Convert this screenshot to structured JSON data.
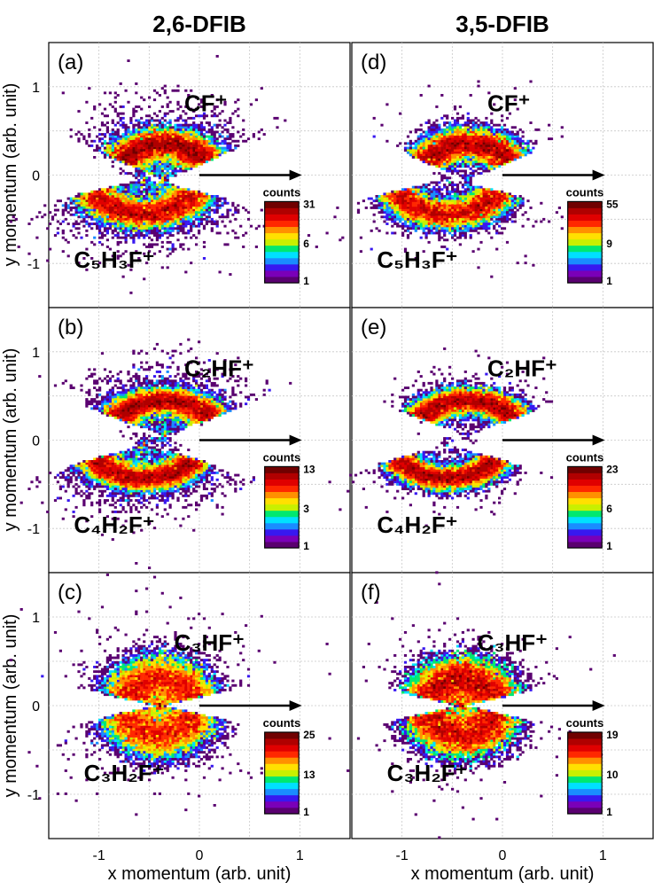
{
  "chart_data": {
    "type": "heatmap",
    "column_titles": [
      "2,6-DFIB",
      "3,5-DFIB"
    ],
    "xlabel": "x momentum (arb. unit)",
    "ylabel": "y momentum (arb. unit)",
    "xlim": [
      -1.5,
      1.5
    ],
    "ylim": [
      -1.5,
      1.5
    ],
    "xticks": [
      "-1",
      "0",
      "1"
    ],
    "yticks": [
      "1",
      "0",
      "-1"
    ],
    "colorbar_title": "counts",
    "colors": [
      "#5a0070",
      "#7a00b8",
      "#3818f0",
      "#1a8cff",
      "#00e0ff",
      "#00e870",
      "#c8f000",
      "#ffe000",
      "#ff9000",
      "#ff2800",
      "#e00000",
      "#b00000",
      "#700000"
    ],
    "panels": [
      {
        "label": "(a)",
        "upper_ion": "CF⁺",
        "lower_ion": "C₅H₃F⁺",
        "cb_ticks": [
          "31",
          "6",
          "1"
        ],
        "spread": 0.8
      },
      {
        "label": "(b)",
        "upper_ion": "C₂HF⁺",
        "lower_ion": "C₄H₂F⁺",
        "cb_ticks": [
          "13",
          "3",
          "1"
        ],
        "spread": 1.0
      },
      {
        "label": "(c)",
        "upper_ion": "C₃HF⁺",
        "lower_ion": "C₃H₂F⁺",
        "cb_ticks": [
          "25",
          "13",
          "1"
        ],
        "spread": 0.3
      },
      {
        "label": "(d)",
        "upper_ion": "CF⁺",
        "lower_ion": "C₅H₃F⁺",
        "cb_ticks": [
          "55",
          "9",
          "1"
        ],
        "spread": 0.2
      },
      {
        "label": "(e)",
        "upper_ion": "C₂HF⁺",
        "lower_ion": "C₄H₂F⁺",
        "cb_ticks": [
          "23",
          "6",
          "1"
        ],
        "spread": 0.2
      },
      {
        "label": "(f)",
        "upper_ion": "C₃HF⁺",
        "lower_ion": "C₃H₂F⁺",
        "cb_ticks": [
          "19",
          "10",
          "1"
        ],
        "spread": 0.15
      }
    ]
  }
}
